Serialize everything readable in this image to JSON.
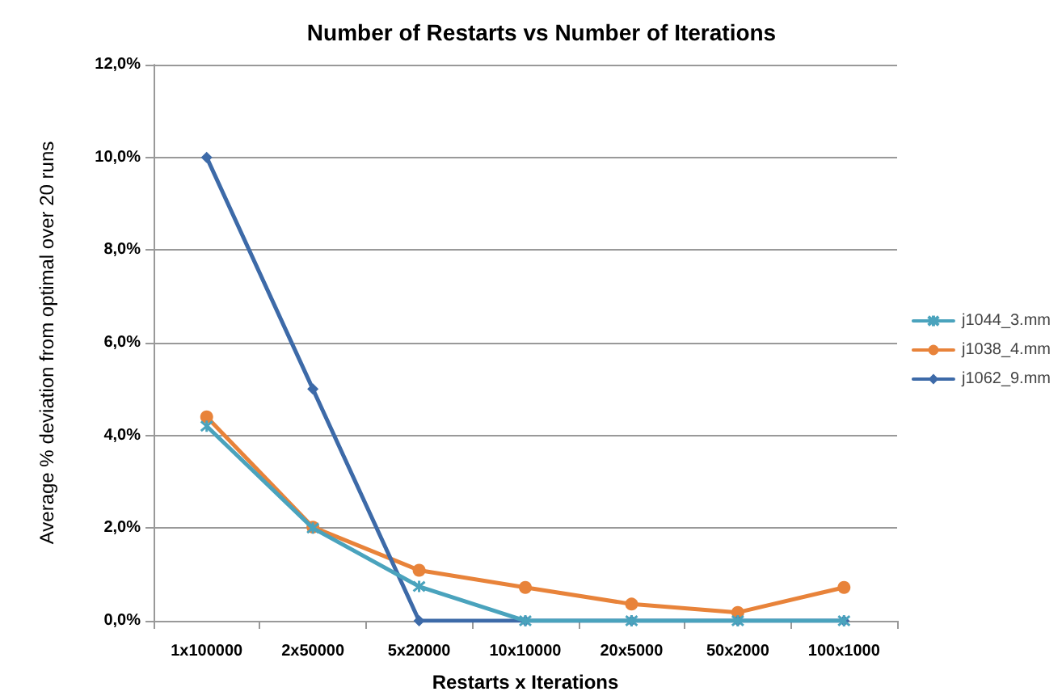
{
  "chart_data": {
    "type": "line",
    "title": "Number of Restarts vs Number of Iterations",
    "xlabel": "Restarts x Iterations",
    "ylabel": "Average % deviation from optimal over 20 runs",
    "categories": [
      "1x100000",
      "2x50000",
      "5x20000",
      "10x10000",
      "20x5000",
      "50x2000",
      "100x1000"
    ],
    "series": [
      {
        "name": "j1044_3.mm",
        "color": "#4aa3bd",
        "marker": "cross",
        "values": [
          4.2,
          2.0,
          0.74,
          0,
          0,
          0,
          0
        ]
      },
      {
        "name": "j1038_4.mm",
        "color": "#e8833a",
        "marker": "circle",
        "values": [
          4.4,
          2.02,
          1.09,
          0.72,
          0.36,
          0.18,
          0.72
        ]
      },
      {
        "name": "j1062_9.mm",
        "color": "#3d6aa8",
        "marker": "diamond",
        "values": [
          10,
          5,
          0,
          0,
          0,
          0,
          0
        ]
      }
    ],
    "ylim": [
      0,
      12
    ],
    "yticks": [
      {
        "value": 0,
        "label": "0,0%"
      },
      {
        "value": 2,
        "label": "2,0%"
      },
      {
        "value": 4,
        "label": "4,0%"
      },
      {
        "value": 6,
        "label": "6,0%"
      },
      {
        "value": 8,
        "label": "8,0%"
      },
      {
        "value": 10,
        "label": "10,0%"
      },
      {
        "value": 12,
        "label": "12,0%"
      }
    ],
    "grid": "y",
    "legend": "right",
    "line_style": "solid"
  }
}
